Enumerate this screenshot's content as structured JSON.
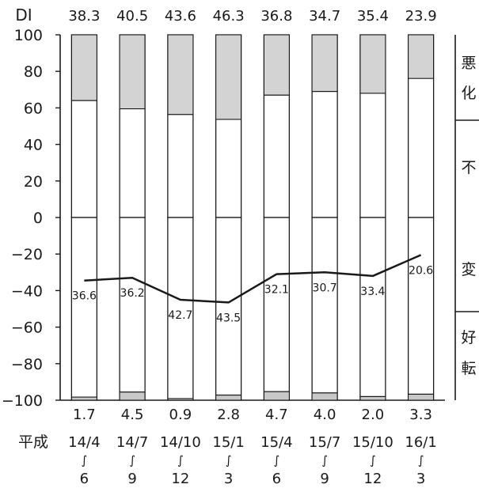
{
  "chart_data": {
    "type": "bar",
    "di_label": "DI",
    "era_label": "平成",
    "y_ticks": [
      "100",
      "80",
      "60",
      "40",
      "20",
      "0",
      "−20",
      "−40",
      "−60",
      "−80",
      "−100"
    ],
    "ylim": [
      -100,
      100
    ],
    "categories": [
      {
        "start": "14/4",
        "sep": "∫",
        "end": "6"
      },
      {
        "start": "14/7",
        "sep": "∫",
        "end": "9"
      },
      {
        "start": "14/10",
        "sep": "∫",
        "end": "12"
      },
      {
        "start": "15/1",
        "sep": "∫",
        "end": "3"
      },
      {
        "start": "15/4",
        "sep": "∫",
        "end": "6"
      },
      {
        "start": "15/7",
        "sep": "∫",
        "end": "9"
      },
      {
        "start": "15/10",
        "sep": "∫",
        "end": "12"
      },
      {
        "start": "16/1",
        "sep": "∫",
        "end": "3"
      }
    ],
    "di": [
      "38.3",
      "40.5",
      "43.6",
      "46.3",
      "36.8",
      "34.7",
      "35.4",
      "23.9"
    ],
    "worsen": [
      36.0,
      40.5,
      43.6,
      46.3,
      33.0,
      31.0,
      32.0,
      23.9
    ],
    "improve": [
      "1.7",
      "4.5",
      "0.9",
      "2.8",
      "4.7",
      "4.0",
      "2.0",
      "3.3"
    ],
    "line": [
      -34.5,
      -33.0,
      -45.0,
      -46.5,
      -31.0,
      -30.0,
      -32.0,
      -20.5
    ],
    "line_labels": [
      "36.6",
      "36.2",
      "42.7",
      "43.5",
      "32.1",
      "30.7",
      "33.4",
      "20.6"
    ],
    "legend": {
      "worsen": [
        "悪",
        "化"
      ],
      "nochange": [
        "不",
        "変"
      ],
      "improve": [
        "好",
        "転"
      ]
    },
    "colors": {
      "worsen": "#d3d3d3",
      "unchanged": "#ffffff",
      "improve": "#c8c8c8",
      "line": "#1a1a1a"
    }
  }
}
